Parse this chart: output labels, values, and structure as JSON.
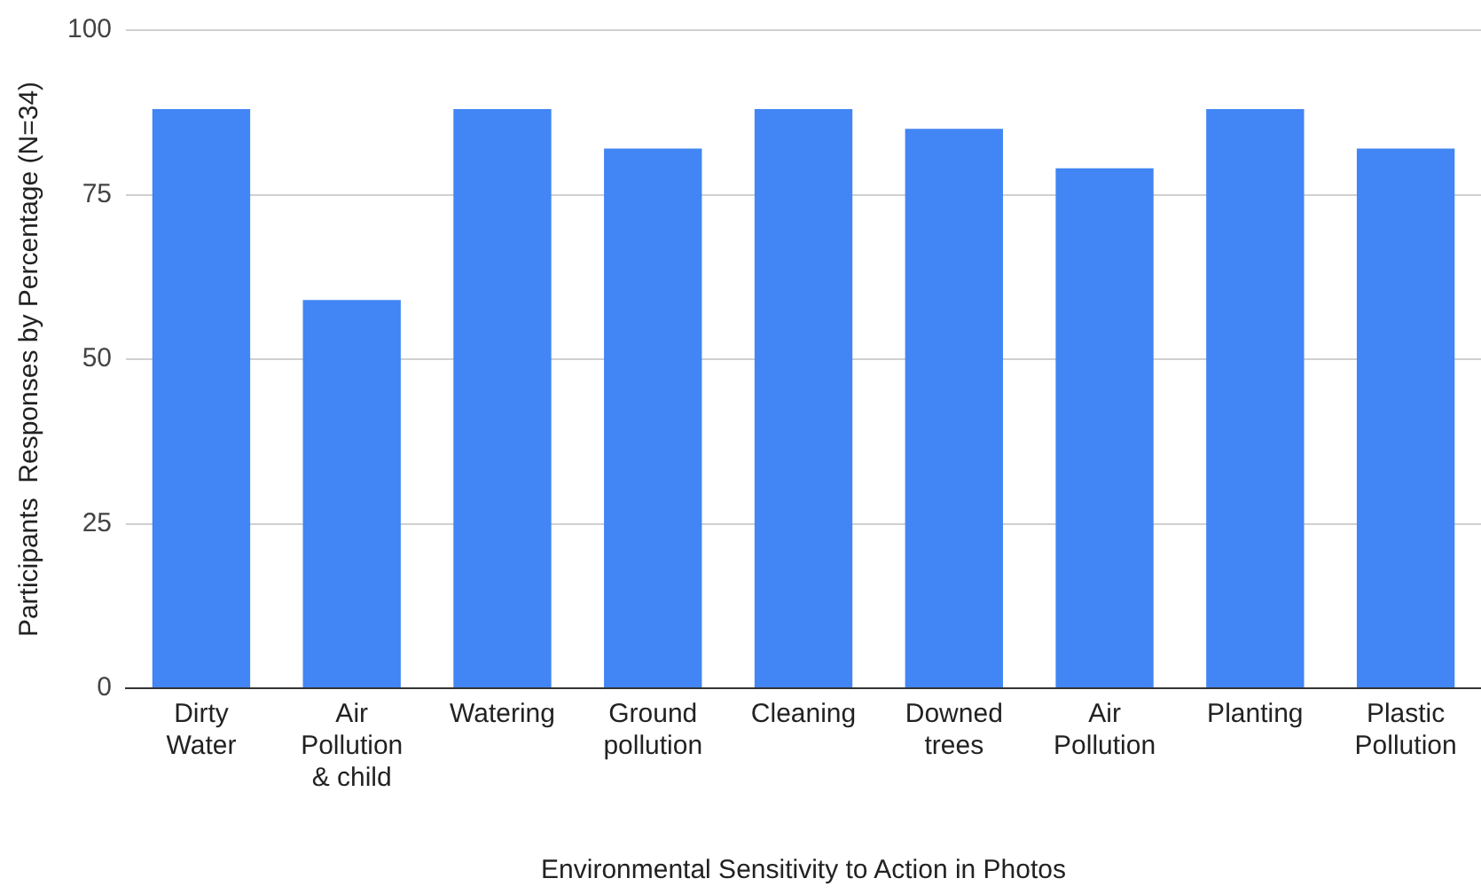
{
  "chart_data": {
    "type": "bar",
    "xlabel": "Environmental Sensitivity to Action in Photos",
    "ylabel": "Participants  Responses by Percentage (N=34)",
    "categories": [
      "Dirty Water",
      "Air Pollution & child",
      "Watering",
      "Ground pollution",
      "Cleaning",
      "Downed trees",
      "Air Pollution",
      "Planting",
      "Plastic Pollution"
    ],
    "values": [
      88,
      59,
      88,
      82,
      88,
      85,
      79,
      88,
      82
    ],
    "color": "#4285f4",
    "ylim": [
      0,
      100
    ],
    "yticks": [
      0,
      25,
      50,
      75,
      100
    ],
    "grid": "y",
    "legend": false
  }
}
